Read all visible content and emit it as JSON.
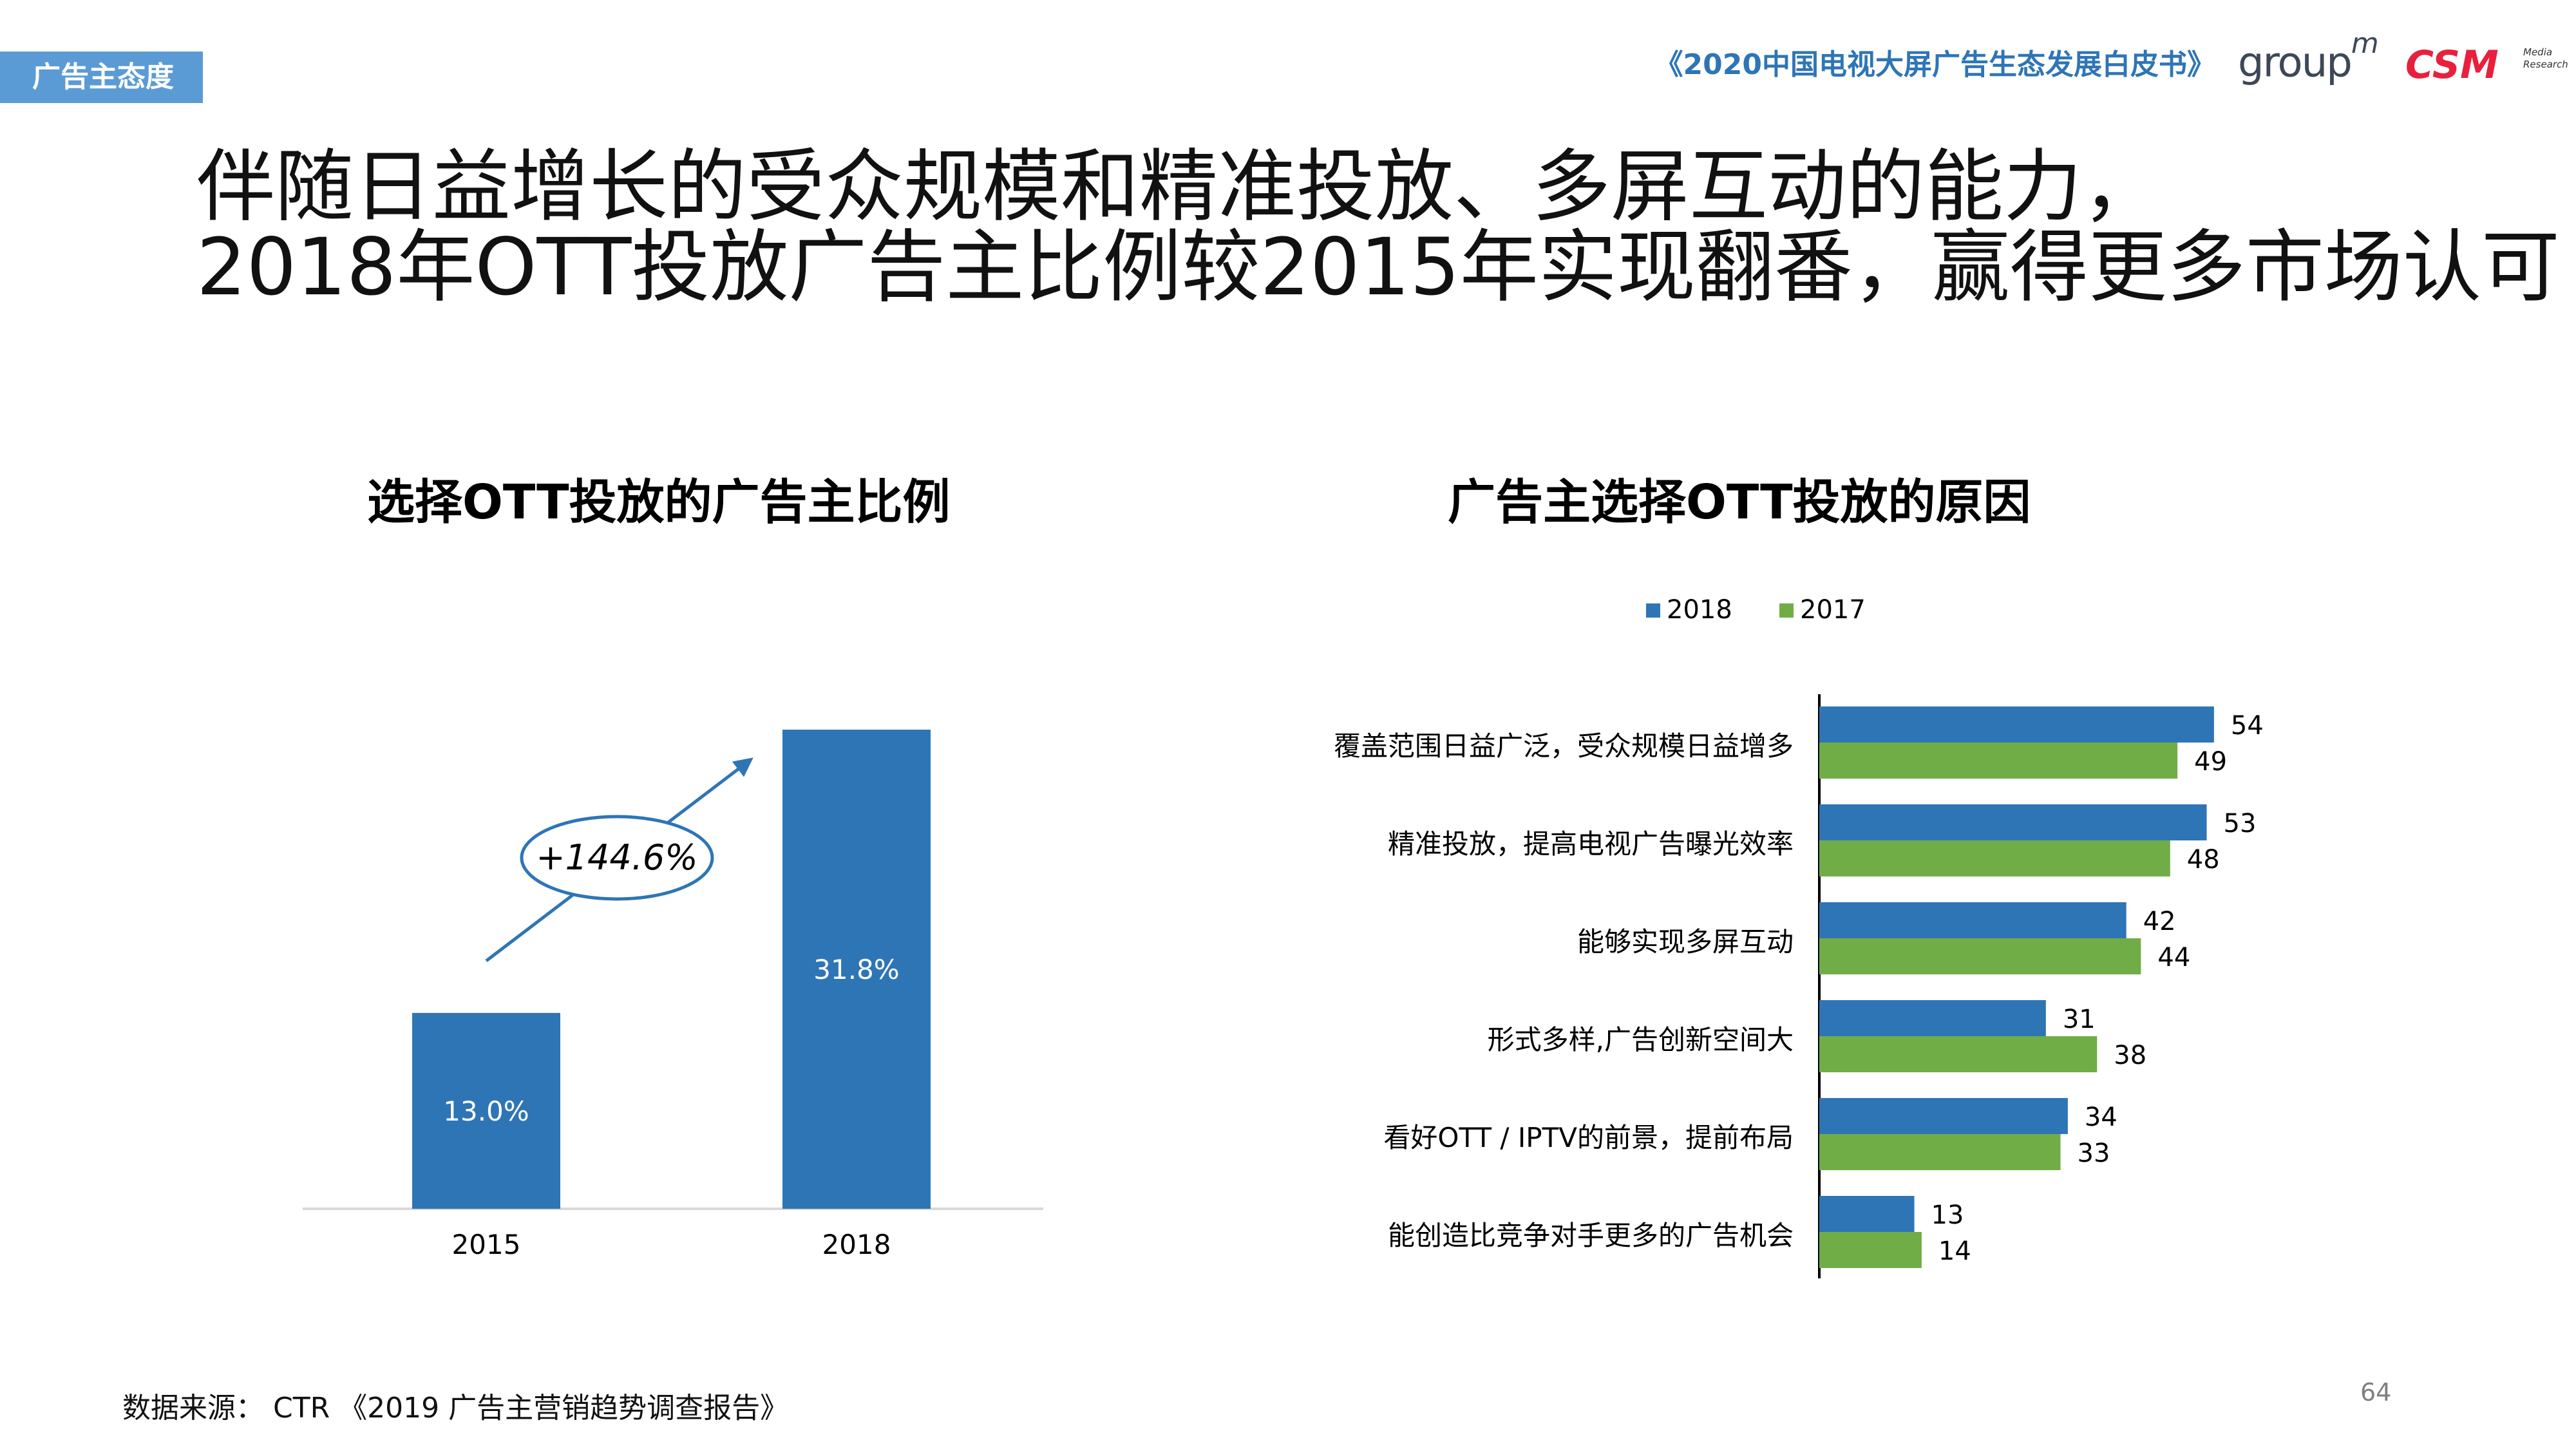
{
  "header": {
    "section_tag": "广告主态度",
    "report_title": "《2020中国电视大屏广告生态发展白皮书》",
    "logo_groupm": "group",
    "logo_groupm_m": "m",
    "logo_csm": "CSM",
    "logo_csm_sub_1": "Media",
    "logo_csm_sub_2": "Research"
  },
  "headline": {
    "line1": "伴随日益增长的受众规模和精准投放、多屏互动的能力，",
    "line2": "2018年OTT投放广告主比例较2015年实现翻番，赢得更多市场认可"
  },
  "colors": {
    "blue": "#2e75b6",
    "green": "#70ad47",
    "accent": "#5b9bd5"
  },
  "chart_data": [
    {
      "type": "bar",
      "title": "选择OTT投放的广告主比例",
      "categories": [
        "2015",
        "2018"
      ],
      "values": [
        13.0,
        31.8
      ],
      "value_labels": [
        "13.0%",
        "31.8%"
      ],
      "ylim": [
        0,
        31.8
      ],
      "annotation": "+144.6%",
      "grid": false
    },
    {
      "type": "bar",
      "orientation": "horizontal",
      "title": "广告主选择OTT投放的原因",
      "categories": [
        "覆盖范围日益广泛，受众规模日益增多",
        "精准投放，提高电视广告曝光效率",
        "能够实现多屏互动",
        "形式多样,广告创新空间大",
        "看好OTT / IPTV的前景，提前布局",
        "能创造比竞争对手更多的广告机会"
      ],
      "series": [
        {
          "name": "2018",
          "values": [
            54,
            53,
            42,
            31,
            34,
            13
          ]
        },
        {
          "name": "2017",
          "values": [
            49,
            48,
            44,
            38,
            33,
            14
          ]
        }
      ],
      "legend": "top",
      "grid": false
    }
  ],
  "footer": {
    "source": "数据来源： CTR 《2019 广告主营销趋势调查报告》",
    "page_number": "64"
  }
}
